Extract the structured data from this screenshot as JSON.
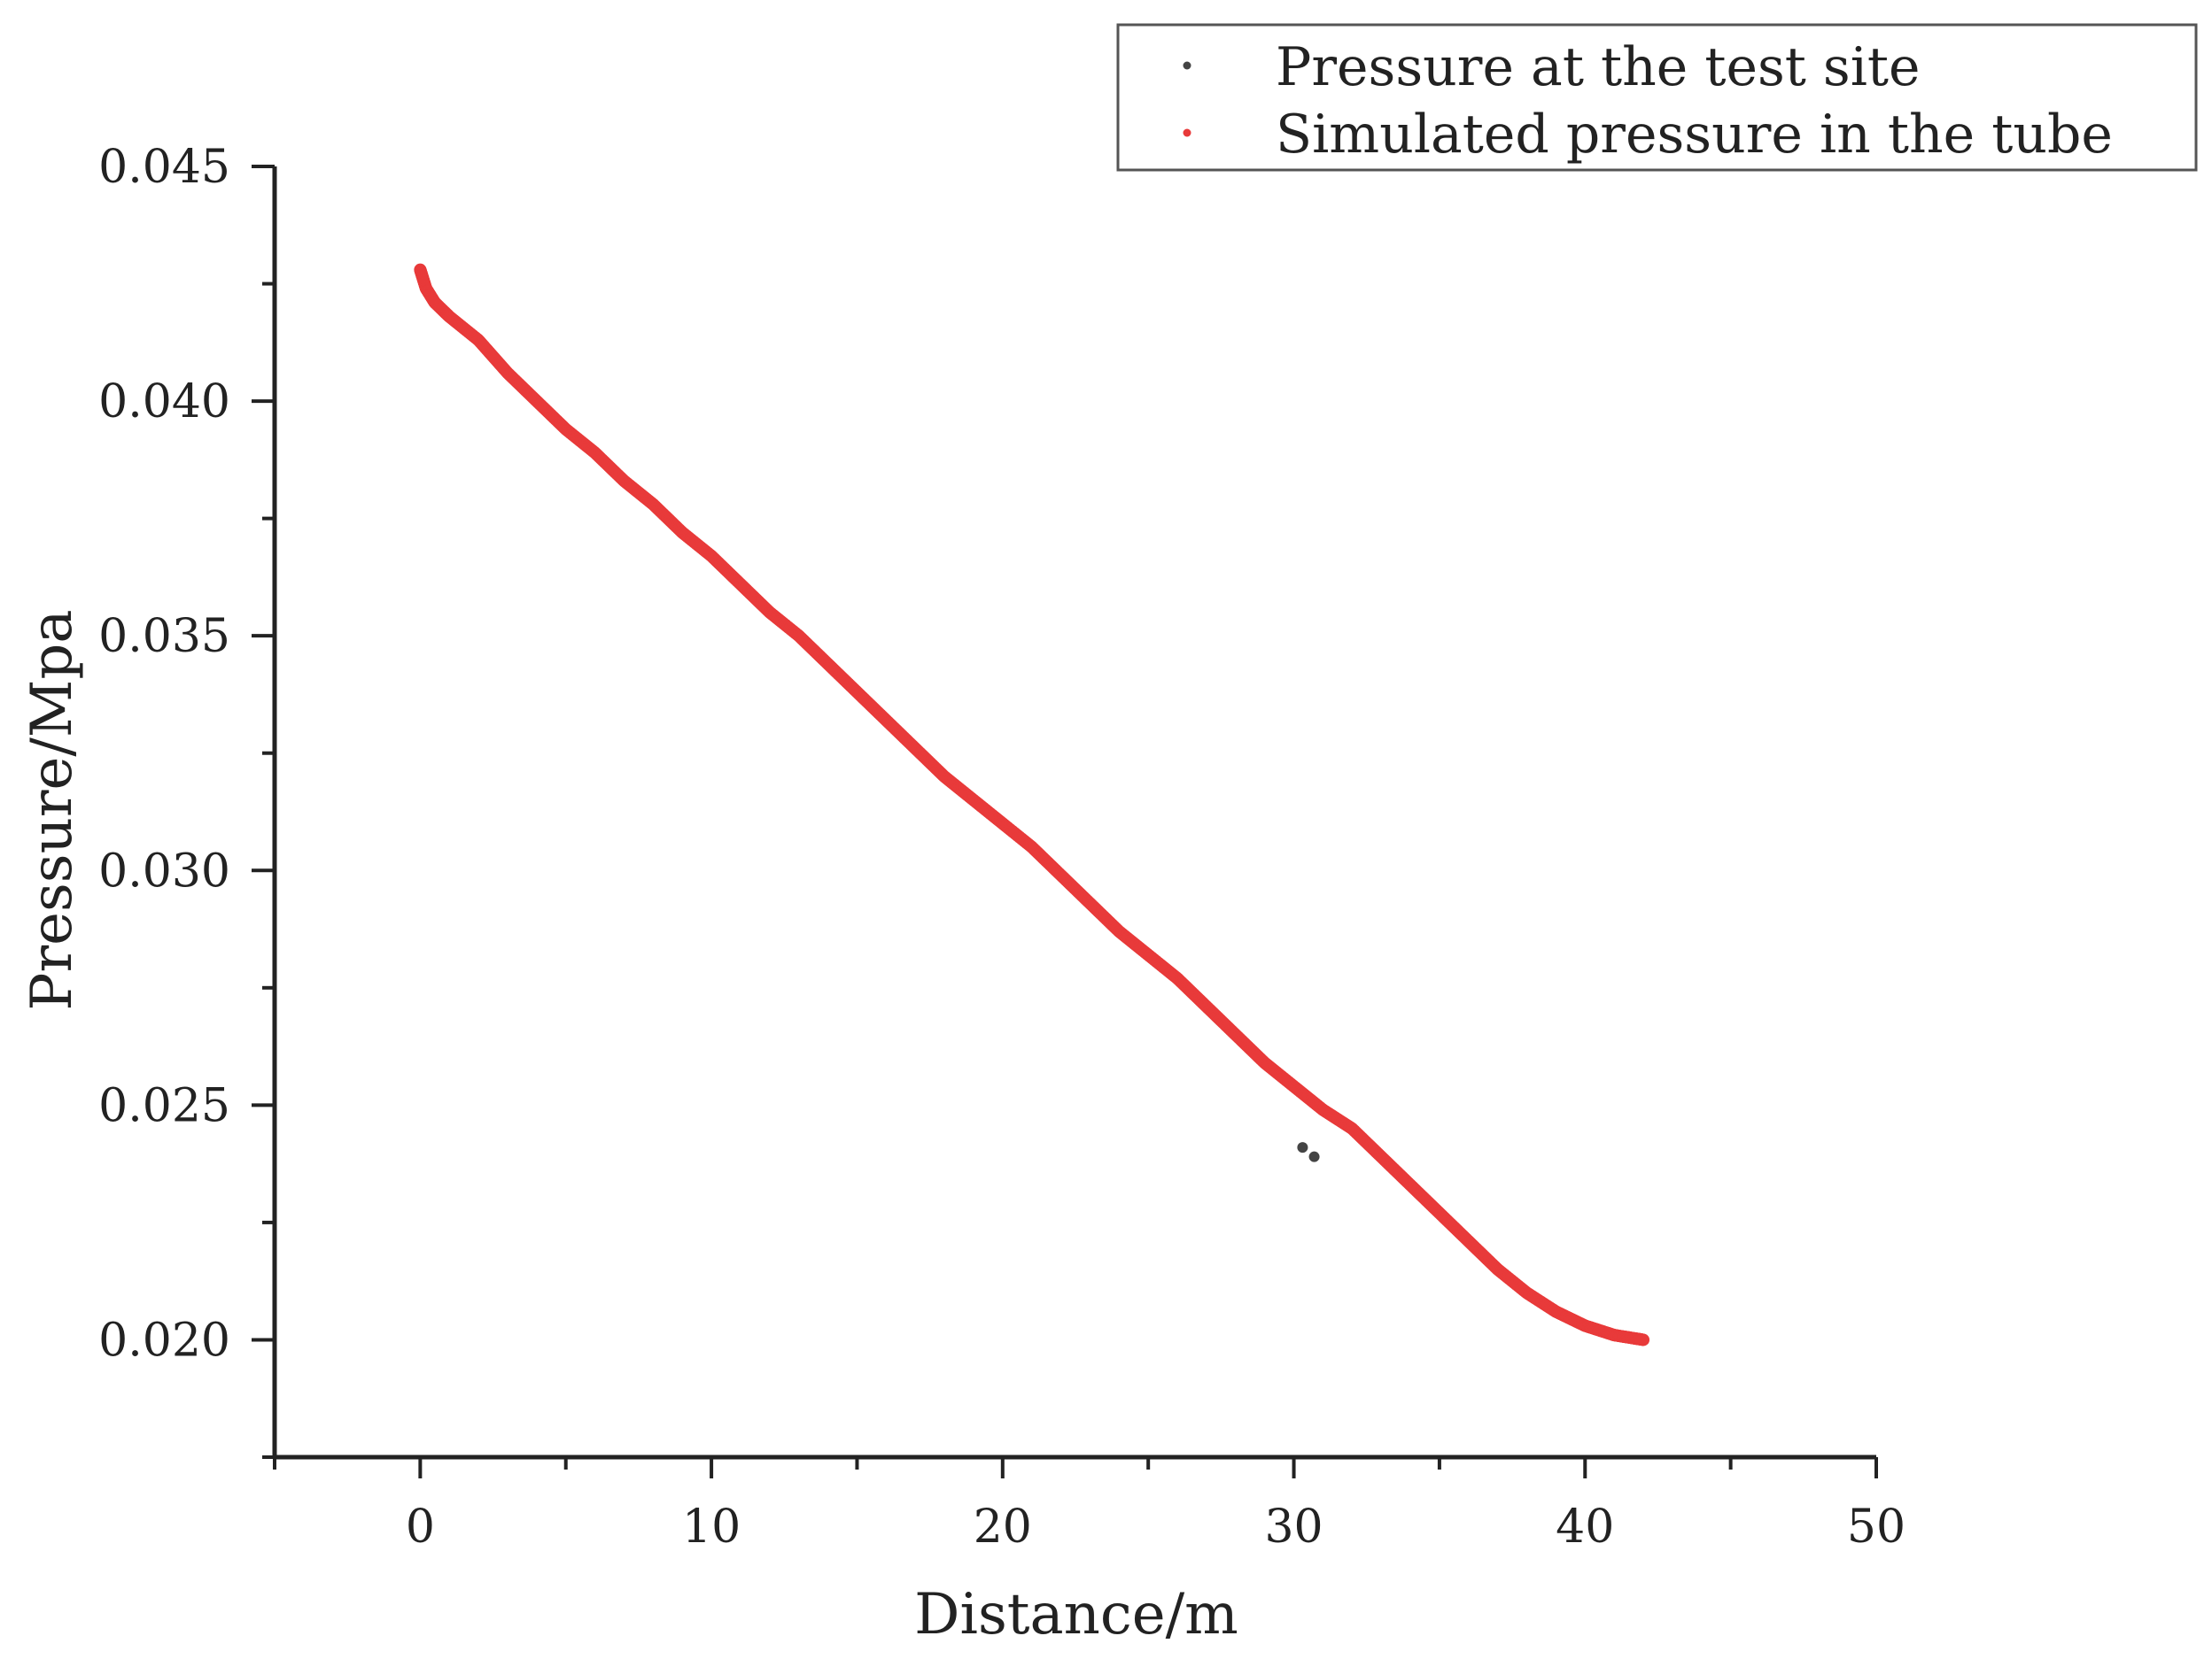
{
  "chart_data": {
    "type": "scatter",
    "title": "",
    "xlabel": "Distance/m",
    "ylabel": "Pressure/Mpa",
    "xlim": [
      -5,
      50
    ],
    "ylim": [
      0.0175,
      0.045
    ],
    "x_ticks": [
      0,
      10,
      20,
      30,
      40,
      50
    ],
    "x_tick_labels": [
      "0",
      "10",
      "20",
      "30",
      "40",
      "50"
    ],
    "y_ticks": [
      0.02,
      0.025,
      0.03,
      0.035,
      0.04,
      0.045
    ],
    "y_tick_labels": [
      "0.020",
      "0.025",
      "0.030",
      "0.035",
      "0.040",
      "0.045"
    ],
    "grid": false,
    "legend_position": "top-right",
    "series": [
      {
        "name": "Simulated pressure in the tube",
        "color": "#e83a3a",
        "x": [
          0,
          0.2,
          0.5,
          1,
          2,
          3,
          4,
          5,
          6,
          7,
          8,
          9,
          10,
          11,
          12,
          13,
          14,
          15,
          16,
          17,
          18,
          19,
          20,
          21,
          22,
          23,
          24,
          25,
          26,
          27,
          28,
          29,
          30,
          31,
          32,
          33,
          34,
          35,
          36,
          37,
          38,
          39,
          40,
          41,
          42
        ],
        "y": [
          0.0428,
          0.0424,
          0.0421,
          0.0418,
          0.0413,
          0.0406,
          0.04,
          0.0394,
          0.0389,
          0.0383,
          0.0378,
          0.0372,
          0.0367,
          0.0361,
          0.0355,
          0.035,
          0.0344,
          0.0338,
          0.0332,
          0.0326,
          0.032,
          0.0315,
          0.031,
          0.0305,
          0.0299,
          0.0293,
          0.0287,
          0.0282,
          0.0277,
          0.0271,
          0.0265,
          0.0259,
          0.0254,
          0.0249,
          0.0245,
          0.0239,
          0.0233,
          0.0227,
          0.0221,
          0.0215,
          0.021,
          0.0206,
          0.0203,
          0.0201,
          0.02
        ]
      },
      {
        "name": "Pressure at the test site",
        "color": "#444444",
        "x": [
          30.3,
          30.7
        ],
        "y": [
          0.0241,
          0.0239
        ]
      }
    ]
  }
}
